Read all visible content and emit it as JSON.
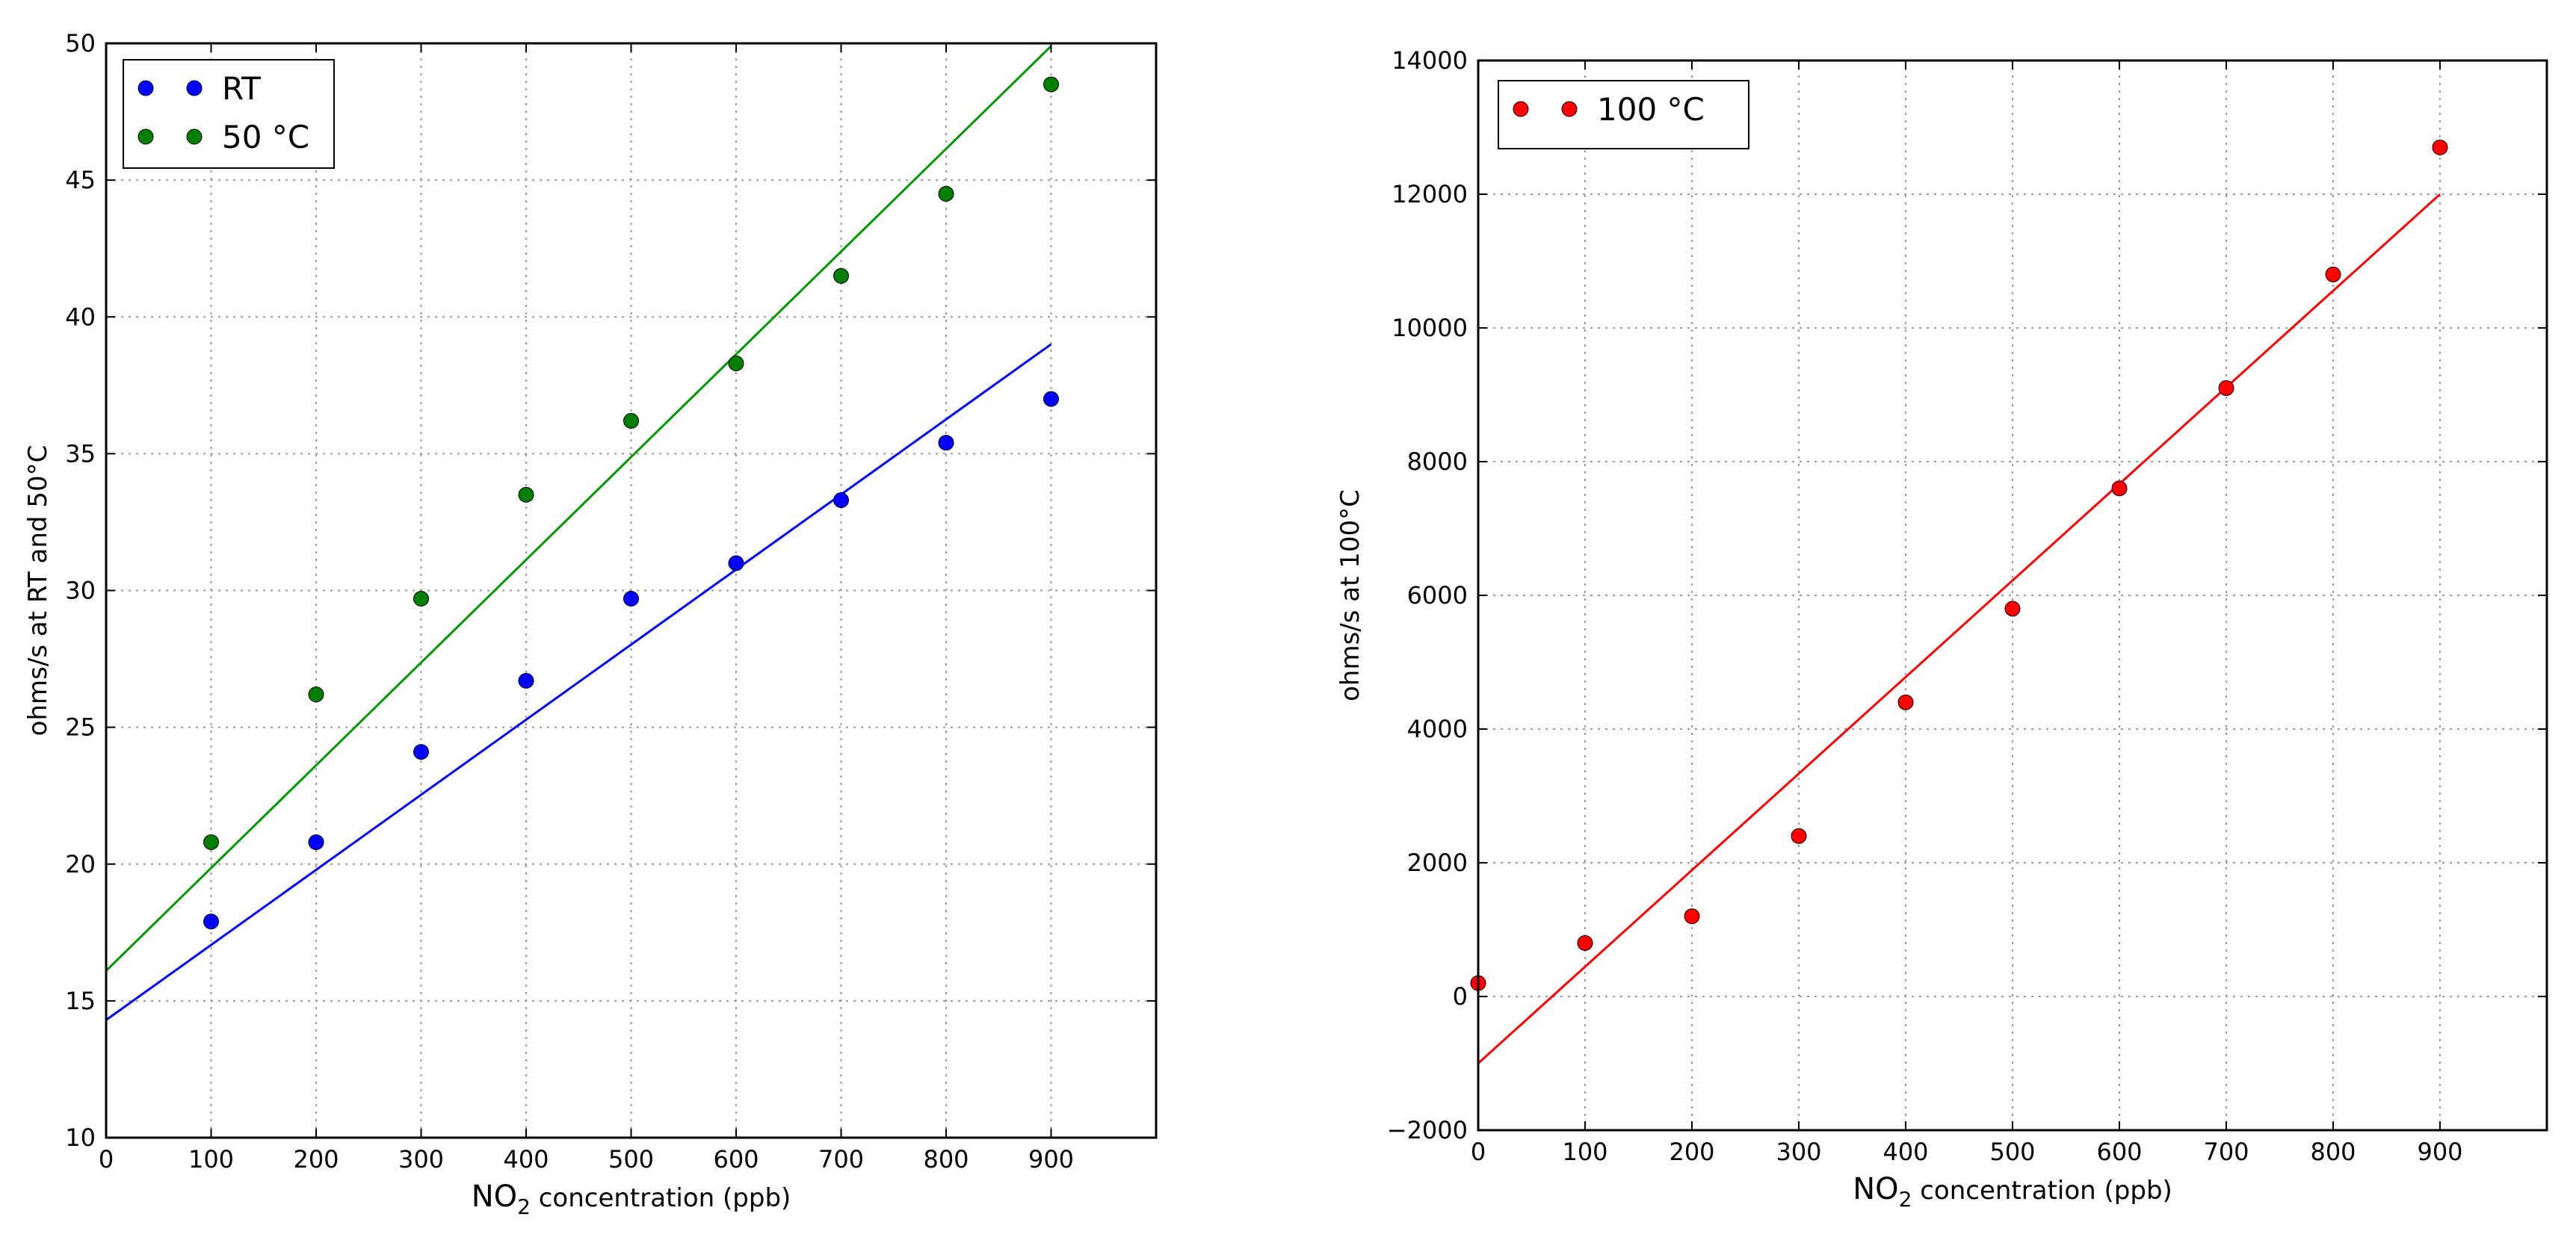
{
  "chart_data": [
    {
      "type": "scatter",
      "xlabel": {
        "prefix": "NO",
        "subscript": "2",
        "suffix": " concentration (ppb)"
      },
      "ylabel": "ohms/s at RT and 50°C",
      "xlim": [
        0,
        1000
      ],
      "ylim": [
        10,
        50
      ],
      "x_ticks": [
        0,
        100,
        200,
        300,
        400,
        500,
        600,
        700,
        800,
        900
      ],
      "y_ticks": [
        10,
        15,
        20,
        25,
        30,
        35,
        40,
        45,
        50
      ],
      "grid": true,
      "legend_position": "top-left",
      "series": [
        {
          "name": "RT",
          "color": "#0000ff",
          "x": [
            100,
            200,
            300,
            400,
            500,
            600,
            700,
            800,
            900
          ],
          "y": [
            17.9,
            20.8,
            24.1,
            26.7,
            29.7,
            31.0,
            33.3,
            35.4,
            37.0
          ],
          "fit": {
            "x": [
              0,
              900
            ],
            "y": [
              14.3,
              39.0
            ],
            "color": "#0000ff"
          }
        },
        {
          "name": "50 °C",
          "color": "#007f00",
          "x": [
            100,
            200,
            300,
            400,
            500,
            600,
            700,
            800,
            900
          ],
          "y": [
            20.8,
            26.2,
            29.7,
            33.5,
            36.2,
            38.3,
            41.5,
            44.5,
            48.5
          ],
          "fit": {
            "x": [
              0,
              900
            ],
            "y": [
              16.1,
              49.9
            ],
            "color": "#009900"
          }
        }
      ]
    },
    {
      "type": "scatter",
      "xlabel": {
        "prefix": "NO",
        "subscript": "2",
        "suffix": " concentration (ppb)"
      },
      "ylabel": "ohms/s at 100°C",
      "xlim": [
        0,
        1000
      ],
      "ylim": [
        -2000,
        14000
      ],
      "x_ticks": [
        0,
        100,
        200,
        300,
        400,
        500,
        600,
        700,
        800,
        900
      ],
      "y_ticks": [
        -2000,
        0,
        2000,
        4000,
        6000,
        8000,
        10000,
        12000,
        14000
      ],
      "y_tick_labels": [
        "−2000",
        "0",
        "2000",
        "4000",
        "6000",
        "8000",
        "10000",
        "12000",
        "14000"
      ],
      "grid": true,
      "legend_position": "top-left",
      "series": [
        {
          "name": "100 °C",
          "color": "#ff0000",
          "x": [
            0,
            100,
            200,
            300,
            400,
            500,
            600,
            700,
            800,
            900
          ],
          "y": [
            200,
            800,
            1200,
            2400,
            4400,
            5800,
            7600,
            9100,
            10800,
            12700
          ],
          "fit": {
            "x": [
              0,
              900
            ],
            "y": [
              -1000,
              12000
            ],
            "color": "#ff0000"
          }
        }
      ]
    }
  ]
}
